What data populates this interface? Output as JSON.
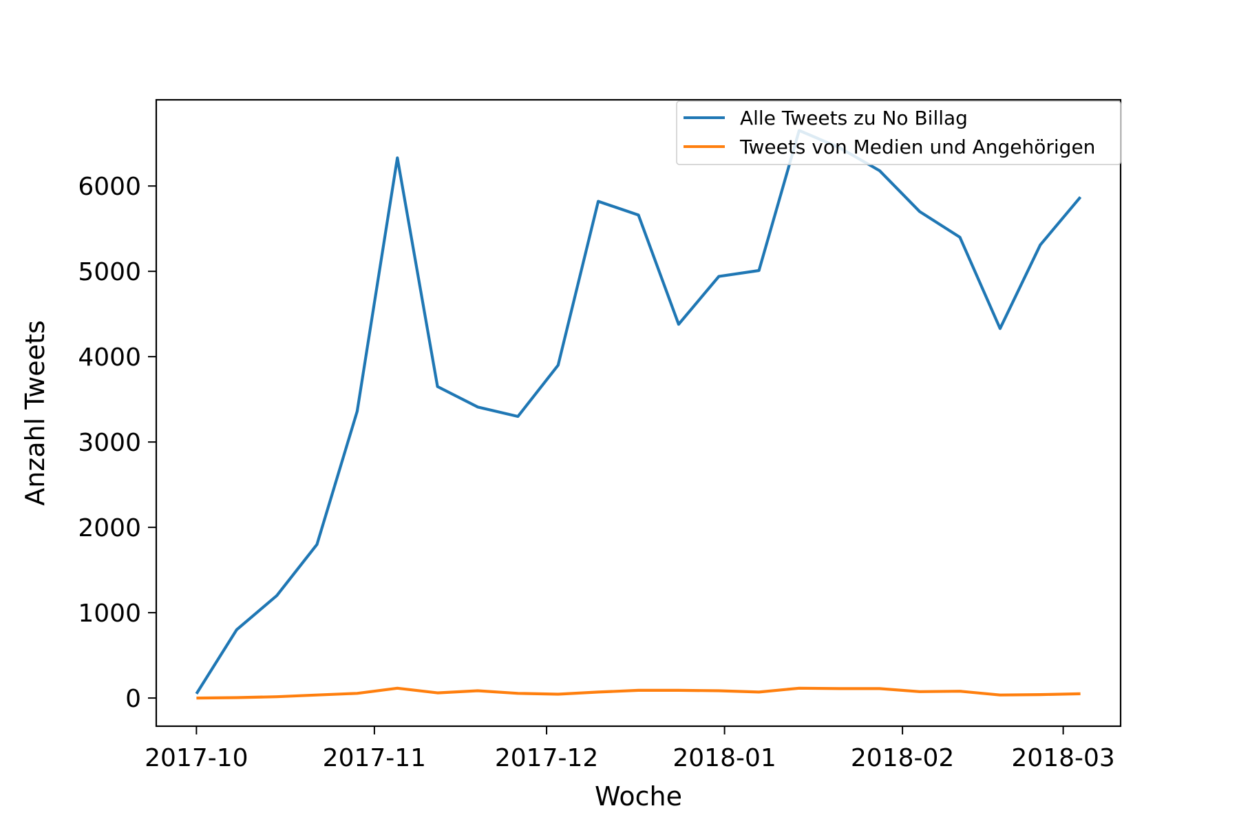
{
  "chart_data": {
    "type": "line",
    "title": "",
    "xlabel": "Woche",
    "ylabel": "Anzahl Tweets",
    "xlim": [
      "2017-09-24",
      "2018-03-11"
    ],
    "ylim": [
      -330,
      7010
    ],
    "x_ticks": [
      "2017-10-01",
      "2017-11-01",
      "2017-12-01",
      "2018-01-01",
      "2018-02-01",
      "2018-03-01"
    ],
    "x_tick_labels": [
      "2017-10",
      "2017-11",
      "2017-12",
      "2018-01",
      "2018-02",
      "2018-03"
    ],
    "y_ticks": [
      0,
      1000,
      2000,
      3000,
      4000,
      5000,
      6000
    ],
    "y_tick_labels": [
      "0",
      "1000",
      "2000",
      "3000",
      "4000",
      "5000",
      "6000"
    ],
    "grid": false,
    "legend_position": "top-right",
    "x": [
      "2017-10-01",
      "2017-10-08",
      "2017-10-15",
      "2017-10-22",
      "2017-10-29",
      "2017-11-05",
      "2017-11-12",
      "2017-11-19",
      "2017-11-26",
      "2017-12-03",
      "2017-12-10",
      "2017-12-17",
      "2017-12-24",
      "2017-12-31",
      "2018-01-07",
      "2018-01-14",
      "2018-01-21",
      "2018-01-28",
      "2018-02-04",
      "2018-02-11",
      "2018-02-18",
      "2018-02-25",
      "2018-03-04"
    ],
    "series": [
      {
        "name": "Alle Tweets zu No Billag",
        "color": "#1f77b4",
        "values": [
          50,
          800,
          1200,
          1800,
          3360,
          6330,
          3650,
          3410,
          3300,
          3900,
          5820,
          5660,
          4380,
          4940,
          5010,
          6650,
          6450,
          6180,
          5700,
          5400,
          4330,
          5310,
          5870
        ]
      },
      {
        "name": "Tweets von Medien und Angehörigen",
        "color": "#ff7f0e",
        "values": [
          0,
          5,
          15,
          35,
          55,
          115,
          60,
          85,
          55,
          45,
          70,
          90,
          90,
          85,
          70,
          115,
          110,
          110,
          75,
          80,
          35,
          40,
          50
        ]
      }
    ]
  }
}
